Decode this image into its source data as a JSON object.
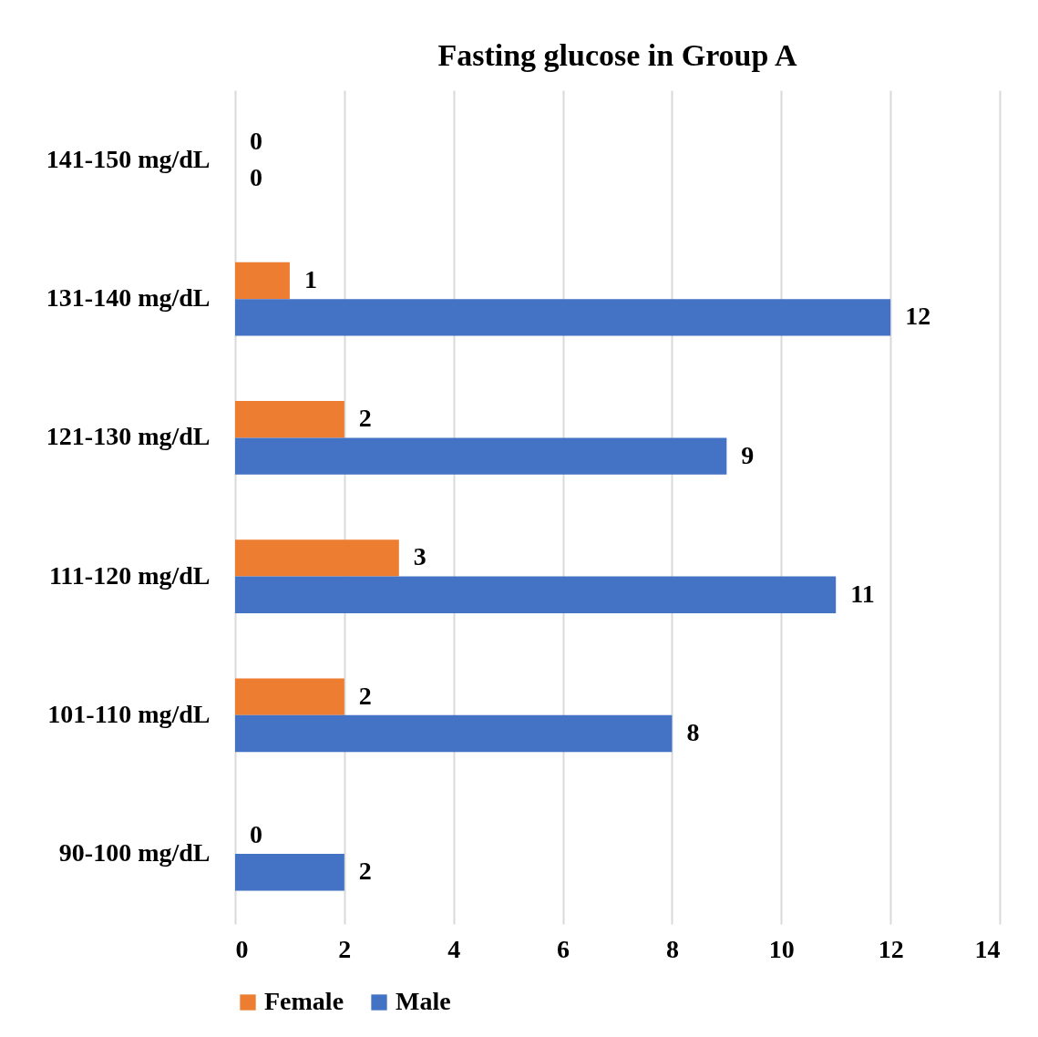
{
  "chart_data": {
    "type": "bar",
    "orientation": "horizontal",
    "title": "Fasting glucose in Group A",
    "categories": [
      "141-150 mg/dL",
      "131-140 mg/dL",
      "121-130 mg/dL",
      "111-120 mg/dL",
      "101-110 mg/dL",
      "90-100 mg/dL"
    ],
    "series": [
      {
        "name": "Female",
        "color": "#ed7d31",
        "values": [
          0,
          1,
          2,
          3,
          2,
          0
        ]
      },
      {
        "name": "Male",
        "color": "#4472c4",
        "values": [
          0,
          12,
          9,
          11,
          8,
          2
        ]
      }
    ],
    "xlim": [
      0,
      14
    ],
    "xticks": [
      0,
      2,
      4,
      6,
      8,
      10,
      12,
      14
    ],
    "grid": "x",
    "legend": "bottom",
    "data_labels": true
  }
}
